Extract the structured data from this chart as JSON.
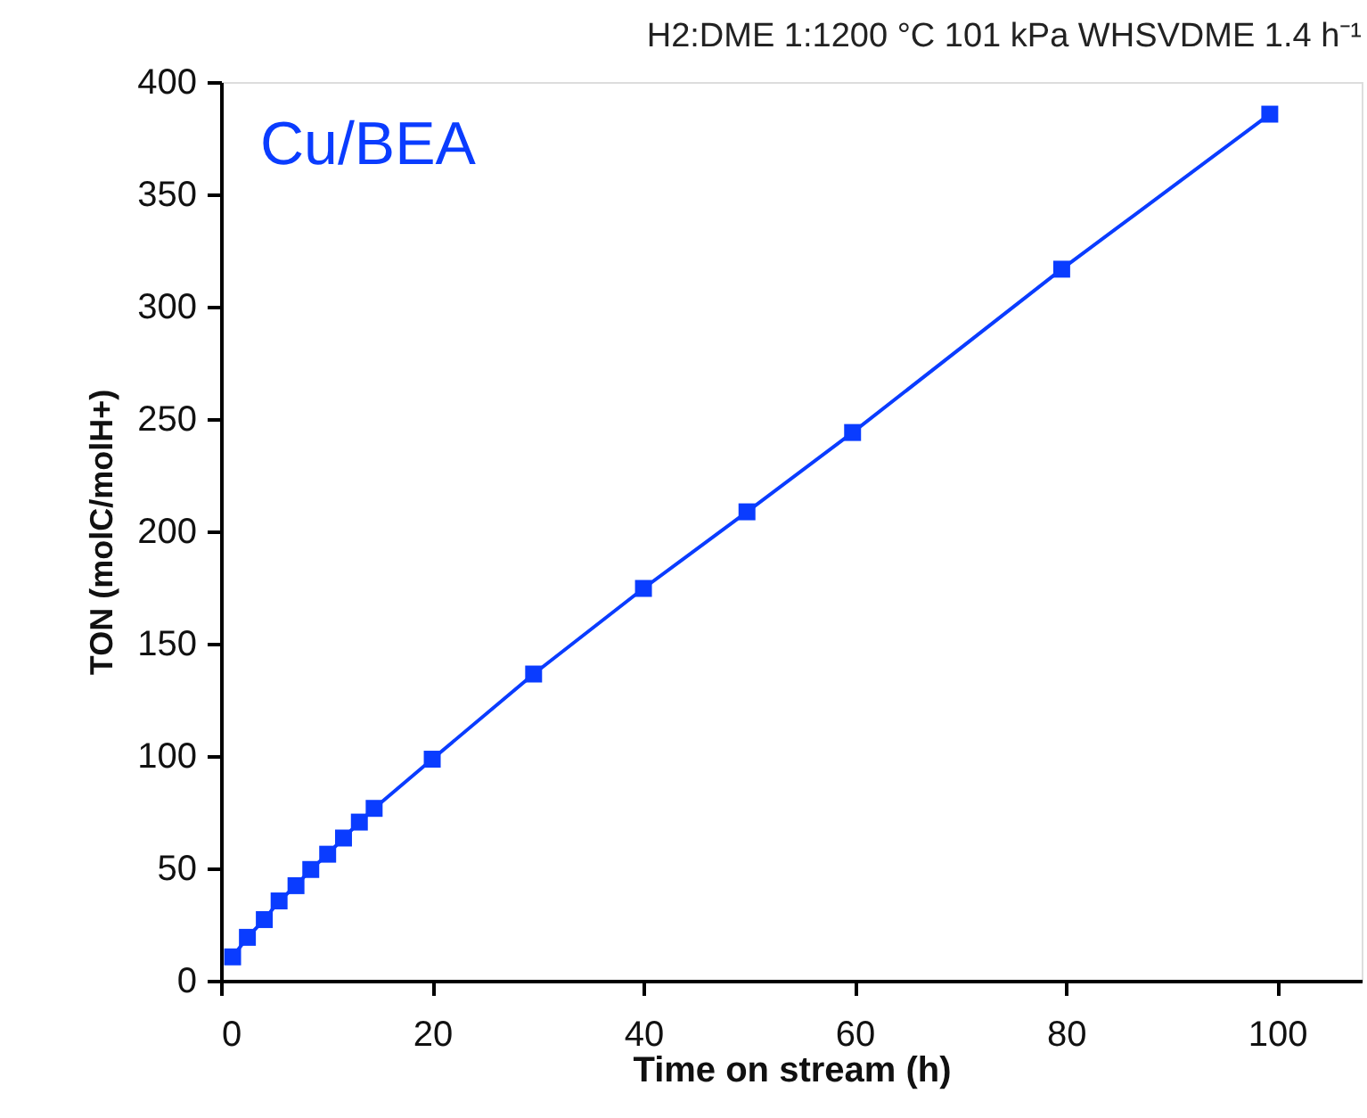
{
  "chart_data": {
    "type": "line",
    "title": "H2:DME 1:1200 °C 101 kPa WHSVDME 1.4 h⁻¹",
    "xlabel": "Time on stream (h)",
    "ylabel": "TON (molC/molH+)",
    "x": [
      1.1,
      2.5,
      4.1,
      5.5,
      7.1,
      8.5,
      10.1,
      11.6,
      13.1,
      14.5,
      20,
      29.6,
      40,
      49.8,
      59.8,
      79.6,
      99.3
    ],
    "series": [
      {
        "name": "Cu/BEA",
        "color": "#0a3cff",
        "values": [
          10.6,
          19.3,
          27.2,
          35.5,
          42.3,
          49.5,
          56.3,
          63.5,
          70.6,
          76.7,
          98.6,
          136.5,
          174.6,
          208.7,
          244,
          316.7,
          385.7
        ]
      }
    ],
    "xlim": [
      0,
      108
    ],
    "xticks": [
      0,
      20,
      40,
      60,
      80,
      100
    ],
    "ylim": [
      0,
      400
    ],
    "yticks": [
      0,
      50,
      100,
      150,
      200,
      250,
      300,
      350,
      400
    ],
    "grid": false,
    "marker": "square",
    "line_style": "solid"
  }
}
